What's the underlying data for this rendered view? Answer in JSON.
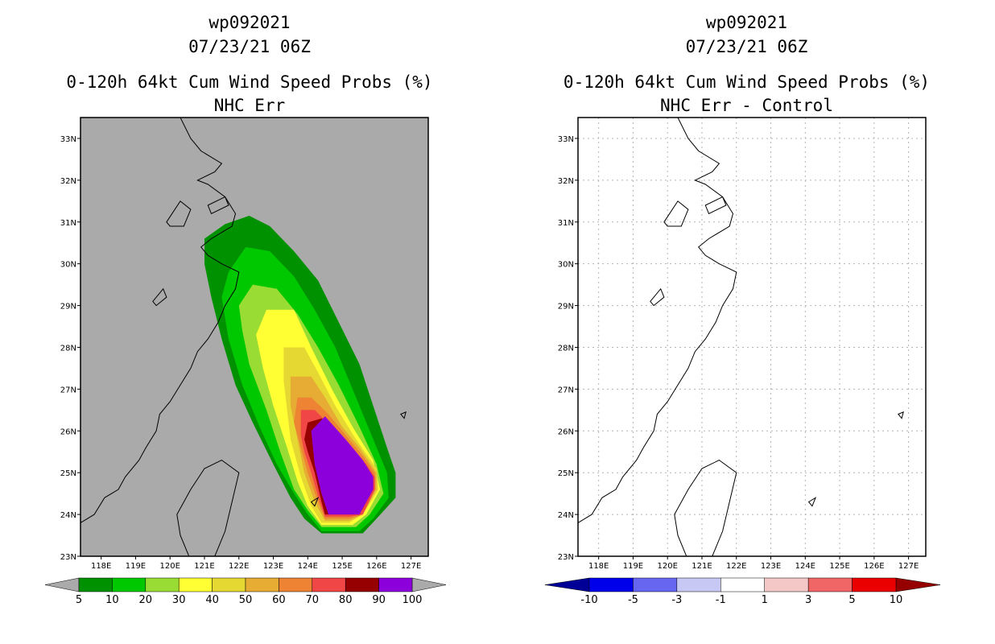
{
  "chart_data": [
    {
      "type": "heatmap",
      "title_lines": [
        "wp092021",
        "07/23/21 06Z",
        "0-120h 64kt Cum Wind Speed Probs (%)",
        "NHC Err"
      ],
      "x_ticks": [
        "118E",
        "119E",
        "120E",
        "121E",
        "122E",
        "123E",
        "124E",
        "125E",
        "126E",
        "127E"
      ],
      "y_ticks": [
        "23N",
        "24N",
        "25N",
        "26N",
        "27N",
        "28N",
        "29N",
        "30N",
        "31N",
        "32N",
        "33N"
      ],
      "xlim": [
        117.4,
        127.5
      ],
      "ylim": [
        23,
        33.5
      ],
      "grid": false,
      "background_color": "#aaaaaa",
      "colorbar": {
        "labels": [
          "5",
          "10",
          "20",
          "30",
          "40",
          "50",
          "60",
          "70",
          "80",
          "90",
          "100"
        ],
        "colors": [
          "#009100",
          "#00c800",
          "#99dc33",
          "#ffff33",
          "#e6d833",
          "#e6ac33",
          "#ee8333",
          "#f04646",
          "#960000",
          "#8c00dc"
        ],
        "end_color": "#aaaaaa"
      },
      "contours": [
        {
          "level": "5",
          "color": "#009100",
          "points": [
            [
              121.0,
              30.6
            ],
            [
              121.6,
              30.95
            ],
            [
              122.3,
              31.15
            ],
            [
              122.9,
              30.9
            ],
            [
              123.6,
              30.3
            ],
            [
              124.3,
              29.6
            ],
            [
              124.9,
              28.6
            ],
            [
              125.5,
              27.6
            ],
            [
              125.9,
              26.6
            ],
            [
              126.3,
              25.6
            ],
            [
              126.55,
              25.0
            ],
            [
              126.55,
              24.4
            ],
            [
              126.0,
              23.9
            ],
            [
              125.6,
              23.55
            ],
            [
              124.4,
              23.55
            ],
            [
              123.9,
              23.9
            ],
            [
              123.5,
              24.4
            ],
            [
              123.0,
              25.2
            ],
            [
              122.4,
              26.2
            ],
            [
              121.9,
              27.1
            ],
            [
              121.5,
              28.2
            ],
            [
              121.2,
              29.2
            ],
            [
              121.0,
              30.0
            ]
          ]
        },
        {
          "level": "10",
          "color": "#00c800",
          "points": [
            [
              121.7,
              29.8
            ],
            [
              122.2,
              30.4
            ],
            [
              122.9,
              30.3
            ],
            [
              123.6,
              29.7
            ],
            [
              124.2,
              28.9
            ],
            [
              124.8,
              28.0
            ],
            [
              125.3,
              27.0
            ],
            [
              125.8,
              26.0
            ],
            [
              126.3,
              25.0
            ],
            [
              126.35,
              24.4
            ],
            [
              125.9,
              23.9
            ],
            [
              125.5,
              23.6
            ],
            [
              124.4,
              23.6
            ],
            [
              124.0,
              24.0
            ],
            [
              123.6,
              24.5
            ],
            [
              123.1,
              25.2
            ],
            [
              122.6,
              26.1
            ],
            [
              122.1,
              27.1
            ],
            [
              121.7,
              28.2
            ],
            [
              121.5,
              29.2
            ]
          ]
        },
        {
          "level": "20",
          "color": "#99dc33",
          "points": [
            [
              122.0,
              29.0
            ],
            [
              122.4,
              29.5
            ],
            [
              123.1,
              29.4
            ],
            [
              123.7,
              28.8
            ],
            [
              124.3,
              28.0
            ],
            [
              124.9,
              27.1
            ],
            [
              125.5,
              26.1
            ],
            [
              126.0,
              25.2
            ],
            [
              126.2,
              24.5
            ],
            [
              125.8,
              24.0
            ],
            [
              125.4,
              23.7
            ],
            [
              124.4,
              23.7
            ],
            [
              124.0,
              24.1
            ],
            [
              123.6,
              24.6
            ],
            [
              123.2,
              25.5
            ],
            [
              122.8,
              26.5
            ],
            [
              122.3,
              27.6
            ],
            [
              122.1,
              28.4
            ]
          ]
        },
        {
          "level": "30",
          "color": "#ffff33",
          "points": [
            [
              122.5,
              28.3
            ],
            [
              122.8,
              28.9
            ],
            [
              123.6,
              28.9
            ],
            [
              124.1,
              28.0
            ],
            [
              124.7,
              27.0
            ],
            [
              125.3,
              26.1
            ],
            [
              125.9,
              25.3
            ],
            [
              126.1,
              24.6
            ],
            [
              125.7,
              24.0
            ],
            [
              125.3,
              23.75
            ],
            [
              124.4,
              23.75
            ],
            [
              124.0,
              24.2
            ],
            [
              123.7,
              24.8
            ],
            [
              123.4,
              25.6
            ],
            [
              123.0,
              26.6
            ],
            [
              122.7,
              27.5
            ]
          ]
        },
        {
          "level": "40",
          "color": "#e6d833",
          "points": [
            [
              123.3,
              27.2
            ],
            [
              123.3,
              28.0
            ],
            [
              123.9,
              28.0
            ],
            [
              124.3,
              27.4
            ],
            [
              124.8,
              26.6
            ],
            [
              125.4,
              25.8
            ],
            [
              126.0,
              25.1
            ],
            [
              126.05,
              24.6
            ],
            [
              125.6,
              24.0
            ],
            [
              125.2,
              23.8
            ],
            [
              124.4,
              23.8
            ],
            [
              124.1,
              24.2
            ],
            [
              123.8,
              24.9
            ],
            [
              123.5,
              25.8
            ]
          ]
        },
        {
          "level": "50",
          "color": "#e6ac33",
          "points": [
            [
              123.5,
              26.6
            ],
            [
              123.5,
              27.3
            ],
            [
              124.1,
              27.3
            ],
            [
              124.5,
              26.8
            ],
            [
              125.0,
              26.1
            ],
            [
              125.5,
              25.6
            ],
            [
              126.0,
              25.0
            ],
            [
              126.0,
              24.6
            ],
            [
              125.6,
              24.0
            ],
            [
              125.2,
              23.85
            ],
            [
              124.5,
              23.85
            ],
            [
              124.2,
              24.3
            ],
            [
              123.9,
              25.0
            ],
            [
              123.7,
              25.8
            ]
          ]
        },
        {
          "level": "60",
          "color": "#ee8333",
          "points": [
            [
              123.6,
              26.2
            ],
            [
              123.7,
              26.8
            ],
            [
              124.1,
              26.8
            ],
            [
              124.6,
              26.4
            ],
            [
              125.1,
              25.9
            ],
            [
              125.6,
              25.4
            ],
            [
              125.95,
              25.0
            ],
            [
              125.95,
              24.6
            ],
            [
              125.6,
              24.0
            ],
            [
              125.2,
              23.9
            ],
            [
              124.5,
              23.9
            ],
            [
              124.3,
              24.3
            ],
            [
              124.0,
              25.0
            ],
            [
              123.8,
              25.6
            ]
          ]
        },
        {
          "level": "70",
          "color": "#f04646",
          "points": [
            [
              123.8,
              25.9
            ],
            [
              123.8,
              26.5
            ],
            [
              124.2,
              26.5
            ],
            [
              124.7,
              26.1
            ],
            [
              125.2,
              25.7
            ],
            [
              125.7,
              25.2
            ],
            [
              125.95,
              24.9
            ],
            [
              125.95,
              24.6
            ],
            [
              125.6,
              24.0
            ],
            [
              125.2,
              23.95
            ],
            [
              124.5,
              23.95
            ],
            [
              124.35,
              24.3
            ],
            [
              124.1,
              25.0
            ],
            [
              123.9,
              25.5
            ]
          ]
        },
        {
          "level": "80",
          "color": "#960000",
          "points": [
            [
              123.9,
              25.8
            ],
            [
              124.0,
              26.2
            ],
            [
              124.4,
              26.3
            ],
            [
              124.9,
              25.9
            ],
            [
              125.4,
              25.4
            ],
            [
              125.8,
              25.0
            ],
            [
              125.9,
              24.8
            ],
            [
              125.9,
              24.6
            ],
            [
              125.5,
              24.0
            ],
            [
              125.2,
              24.0
            ],
            [
              124.5,
              24.0
            ],
            [
              124.4,
              24.3
            ],
            [
              124.2,
              25.0
            ],
            [
              124.0,
              25.5
            ]
          ]
        },
        {
          "level": "90",
          "color": "#8c00dc",
          "points": [
            [
              124.1,
              26.0
            ],
            [
              124.5,
              26.35
            ],
            [
              125.1,
              25.8
            ],
            [
              125.6,
              25.3
            ],
            [
              125.9,
              24.9
            ],
            [
              125.9,
              24.6
            ],
            [
              125.5,
              24.0
            ],
            [
              124.6,
              24.0
            ],
            [
              124.4,
              24.5
            ],
            [
              124.2,
              25.2
            ]
          ]
        }
      ]
    },
    {
      "type": "heatmap",
      "title_lines": [
        "wp092021",
        "07/23/21 06Z",
        "0-120h 64kt Cum Wind Speed Probs (%)",
        "NHC Err - Control"
      ],
      "x_ticks": [
        "118E",
        "119E",
        "120E",
        "121E",
        "122E",
        "123E",
        "124E",
        "125E",
        "126E",
        "127E"
      ],
      "y_ticks": [
        "23N",
        "24N",
        "25N",
        "26N",
        "27N",
        "28N",
        "29N",
        "30N",
        "31N",
        "32N",
        "33N"
      ],
      "xlim": [
        117.4,
        127.5
      ],
      "ylim": [
        23,
        33.5
      ],
      "grid": true,
      "background_color": "#ffffff",
      "colorbar": {
        "labels": [
          "-10",
          "-5",
          "-3",
          "-1",
          "1",
          "3",
          "5",
          "10"
        ],
        "colors": [
          "#0000eb",
          "#6666f0",
          "#c8c8f5",
          "#ffffff",
          "#f5c8c8",
          "#f06666",
          "#eb0000"
        ],
        "left_end_color": "#000096",
        "right_end_color": "#960000"
      },
      "contours": []
    }
  ]
}
